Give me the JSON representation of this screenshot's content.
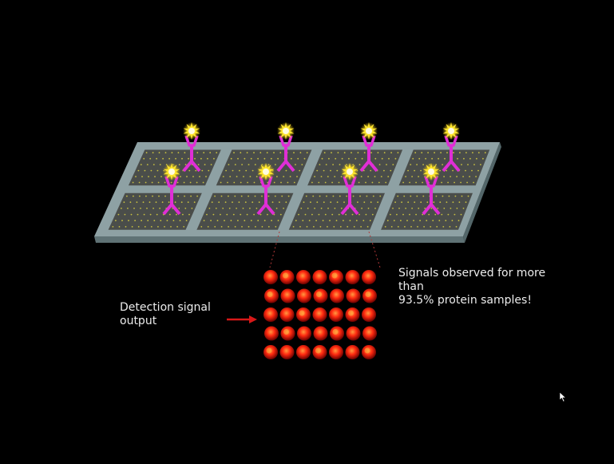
{
  "labels": {
    "detection_output": [
      "Detection signal",
      "output"
    ],
    "signals_observed": [
      "Signals observed for more",
      "than",
      "93.5% protein samples!"
    ]
  },
  "colors": {
    "background": "#000000",
    "slide_top": "#8ea1a4",
    "slide_edge": "#6f8487",
    "spot_pad": "#4a4d4a",
    "spot_dot": "#c8c040",
    "antibody": "#e02ed6",
    "star": "#ffe62e",
    "arrow": "#d81818",
    "well_red": "#ff2a10"
  },
  "icons": {
    "antigen": "star-burst-icon",
    "antibody": "y-antibody-icon",
    "cursor": "mouse-pointer-icon"
  },
  "array": {
    "rows": 5,
    "cols": 7
  }
}
